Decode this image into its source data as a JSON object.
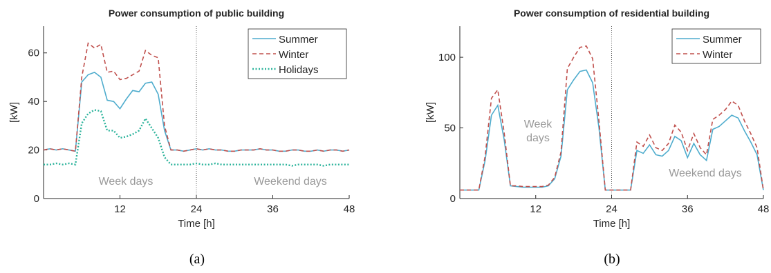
{
  "chart_data": [
    {
      "type": "line",
      "title": "Power consumption of public building",
      "xlabel": "Time [h]",
      "ylabel": "[kW]",
      "caption": "(a)",
      "x": [
        0,
        1,
        2,
        3,
        4,
        5,
        6,
        7,
        8,
        9,
        10,
        11,
        12,
        13,
        14,
        15,
        16,
        17,
        18,
        19,
        20,
        21,
        22,
        23,
        24,
        25,
        26,
        27,
        28,
        29,
        30,
        31,
        32,
        33,
        34,
        35,
        36,
        37,
        38,
        39,
        40,
        41,
        42,
        43,
        44,
        45,
        46,
        47,
        48
      ],
      "xlim": [
        0,
        48
      ],
      "xticks": [
        12,
        24,
        36,
        48
      ],
      "ylim": [
        0,
        71
      ],
      "yticks": [
        0,
        20,
        40,
        60
      ],
      "vline": 24,
      "legend": "upper right",
      "annotations": [
        "Week days",
        "Weekend days"
      ],
      "series": [
        {
          "name": "Summer",
          "color": "#4eaccd",
          "style": "solid",
          "values": [
            20,
            20.5,
            20,
            20.5,
            20,
            19.5,
            48,
            51,
            52,
            50,
            40.5,
            40,
            37,
            41,
            44.5,
            44,
            47.5,
            48,
            43,
            28,
            20,
            20,
            19.5,
            20,
            20.5,
            20,
            20.5,
            20,
            20,
            19.5,
            19.5,
            20,
            20,
            20,
            20.5,
            20,
            20,
            19.5,
            19.5,
            20,
            20,
            19.5,
            19.5,
            20,
            19.5,
            20,
            20,
            19.5,
            20
          ]
        },
        {
          "name": "Winter",
          "color": "#c0504d",
          "style": "dashed",
          "values": [
            20,
            20.5,
            20,
            20.5,
            20,
            19.5,
            50,
            64,
            62,
            63.5,
            52,
            52.5,
            49,
            49.5,
            51,
            52.5,
            61,
            59,
            58,
            30,
            20,
            20,
            19.5,
            20,
            20.5,
            20,
            20.5,
            20,
            20,
            19.5,
            19.5,
            20,
            20,
            20,
            20.5,
            20,
            20,
            19.5,
            19.5,
            20,
            20,
            19.5,
            19.5,
            20,
            19.5,
            20,
            20,
            19.5,
            20
          ]
        },
        {
          "name": "Holidays",
          "color": "#2bb39b",
          "style": "dotted",
          "values": [
            14,
            14,
            14.5,
            14,
            14.5,
            14,
            31,
            35,
            36.5,
            36,
            28,
            28,
            25,
            25.5,
            26.5,
            28,
            33,
            29,
            25,
            17,
            14,
            14,
            14,
            14,
            14.5,
            14,
            14,
            14.5,
            14,
            14,
            14,
            14,
            14,
            14,
            14,
            14,
            14,
            14,
            14,
            13.5,
            14,
            14,
            14,
            14,
            13.5,
            14,
            14,
            14,
            14
          ]
        }
      ]
    },
    {
      "type": "line",
      "title": "Power consumption of residential building",
      "xlabel": "Time [h]",
      "ylabel": "[kW]",
      "caption": "(b)",
      "x": [
        0,
        1,
        2,
        3,
        4,
        5,
        6,
        7,
        8,
        9,
        10,
        11,
        12,
        13,
        14,
        15,
        16,
        17,
        18,
        19,
        20,
        21,
        22,
        23,
        24,
        25,
        26,
        27,
        28,
        29,
        30,
        31,
        32,
        33,
        34,
        35,
        36,
        37,
        38,
        39,
        40,
        41,
        42,
        43,
        44,
        45,
        46,
        47,
        48
      ],
      "xlim": [
        0,
        48
      ],
      "xticks": [
        12,
        24,
        36,
        48
      ],
      "ylim": [
        0,
        122
      ],
      "yticks": [
        0,
        50,
        100
      ],
      "vline": 24,
      "legend": "upper right",
      "annotations": [
        "Week\ndays",
        "Weekend days"
      ],
      "series": [
        {
          "name": "Summer",
          "color": "#4eaccd",
          "style": "solid",
          "values": [
            6,
            6,
            6,
            6,
            27,
            59,
            66,
            42,
            9,
            8.5,
            8,
            8,
            8,
            8,
            9,
            14,
            30,
            77,
            84,
            90,
            91,
            82,
            50,
            6,
            6,
            6,
            6,
            6,
            34,
            32,
            38,
            31,
            30,
            34,
            44,
            41,
            29,
            39,
            31,
            27,
            49,
            51,
            55,
            59,
            57,
            48,
            40,
            31,
            6
          ]
        },
        {
          "name": "Winter",
          "color": "#c0504d",
          "style": "dashed",
          "values": [
            6,
            6,
            6,
            6,
            30,
            71,
            77,
            47,
            9,
            9,
            8.5,
            8.5,
            8.5,
            8.5,
            9.5,
            15,
            33,
            92,
            100,
            107,
            108,
            99,
            55,
            6,
            6,
            6,
            6,
            6,
            40,
            37,
            45,
            36,
            34,
            39,
            52,
            47,
            34,
            46,
            36,
            31,
            56,
            59,
            63,
            69,
            66,
            55,
            46,
            36,
            6
          ]
        }
      ]
    }
  ]
}
